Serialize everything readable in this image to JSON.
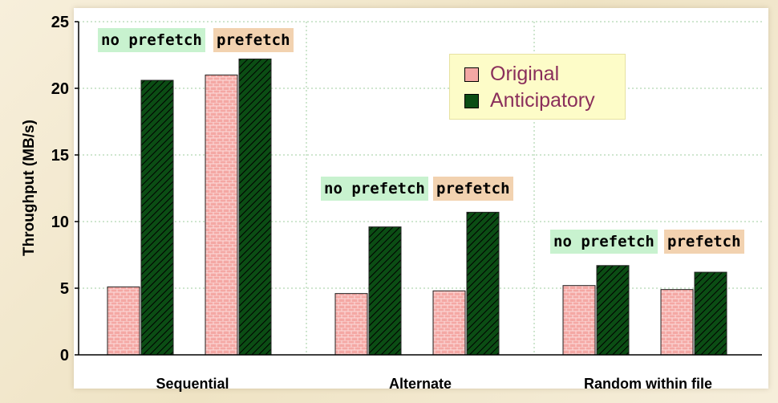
{
  "chart_data": {
    "type": "bar",
    "title": "",
    "xlabel": "",
    "ylabel": "Throughput (MB/s)",
    "ylim": [
      0,
      25
    ],
    "yticks": [
      "0",
      "5",
      "10",
      "15",
      "20",
      "25"
    ],
    "grid": true,
    "categories": [
      "Sequential",
      "Alternate",
      "Random within file"
    ],
    "groups": [
      "no prefetch",
      "prefetch"
    ],
    "series": [
      {
        "name": "Original",
        "color": "#f4a8a4",
        "values": [
          [
            5.1,
            21.0
          ],
          [
            4.6,
            4.8
          ],
          [
            5.2,
            4.9
          ]
        ]
      },
      {
        "name": "Anticipatory",
        "color": "#0b4d14",
        "values": [
          [
            20.6,
            22.2
          ],
          [
            9.6,
            10.7
          ],
          [
            6.7,
            6.2
          ]
        ]
      }
    ],
    "legend": {
      "placement": "top-center",
      "items": [
        "Original",
        "Anticipatory"
      ]
    }
  },
  "tags": {
    "no_prefetch": "no prefetch",
    "prefetch": "prefetch"
  },
  "colors": {
    "original_fill": "#f4a8a4",
    "anticipatory_fill": "#0b4d14",
    "legend_text": "#8a2e5b",
    "no_prefetch_bg": "#c8f2cf",
    "prefetch_bg": "#f2d2b0"
  }
}
